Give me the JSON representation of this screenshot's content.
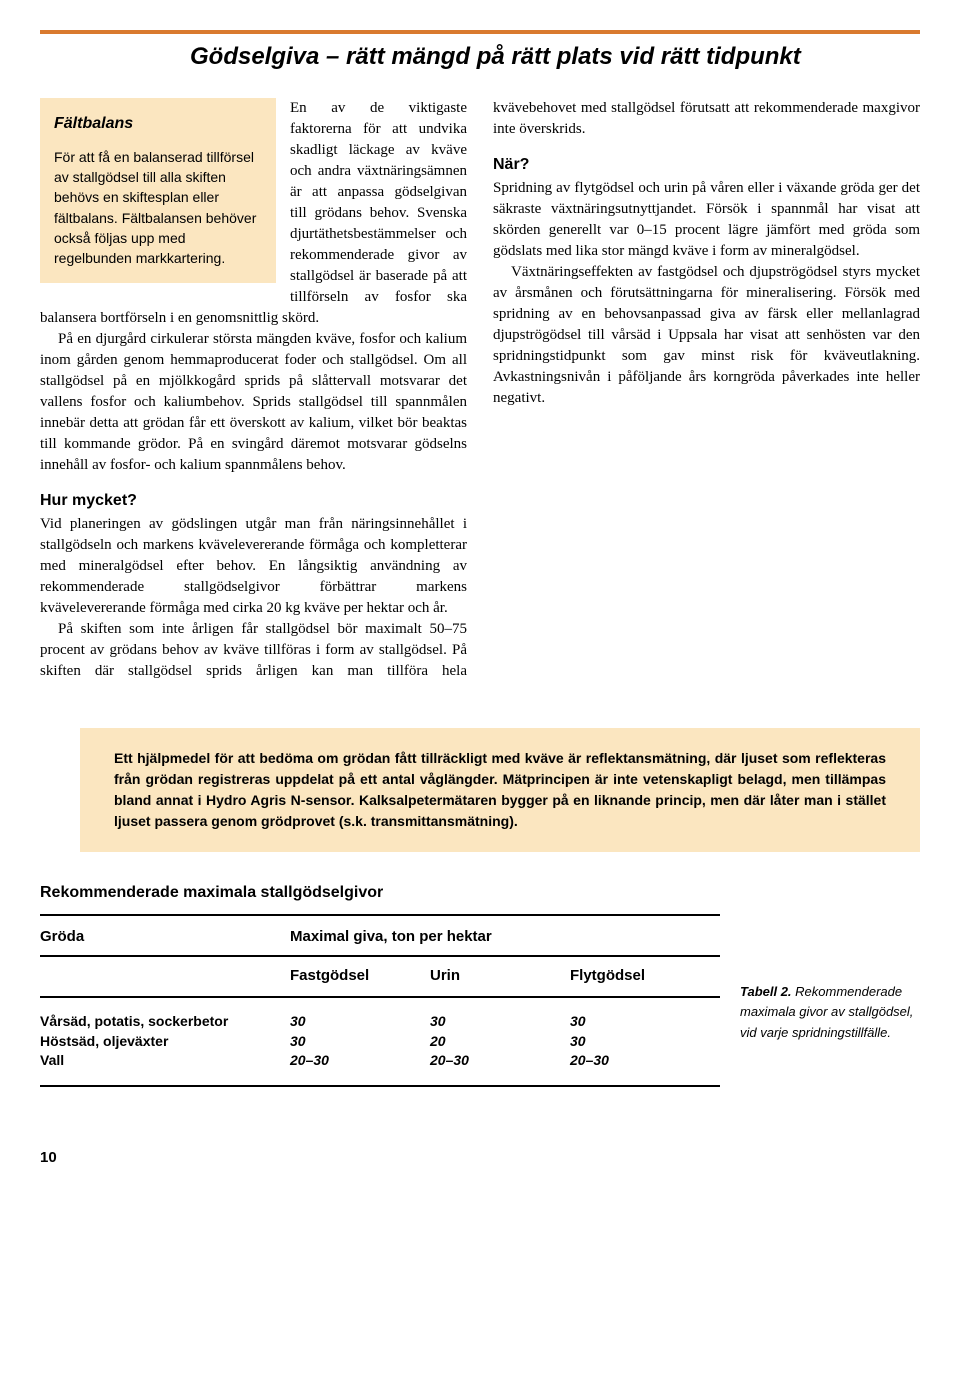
{
  "title": "Gödselgiva – rätt mängd på rätt plats vid rätt tidpunkt",
  "sidebar": {
    "heading": "Fältbalans",
    "text": "För att få en balanserad tillförsel av stallgödsel till alla skiften behövs en skiftesplan eller fältbalans. Fältbalansen behöver också följas upp med regelbunden markkartering."
  },
  "body": {
    "p1": "En av de viktigaste faktorerna för att undvika skadligt läckage av kväve och andra växtnäringsämnen är att anpassa gödselgivan till grödans behov. Svenska djurtäthetsbestämmelser och rekommenderade givor av stallgödsel är baserade på att tillförseln av fosfor ska balansera bortförseln i en genomsnittlig skörd.",
    "p2": "På en djurgård cirkulerar största mängden kväve, fosfor och kalium inom gården genom hemmaproducerat foder och stallgödsel. Om all stallgödsel på en mjölkkogård sprids på slåttervall motsvarar det vallens fosfor och kaliumbehov. Sprids stallgödsel till spannmålen innebär detta att grödan får ett överskott av kalium, vilket bör beaktas till kommande grödor. På en svingård däremot motsvarar gödselns innehåll av fosfor- och kalium spannmålens behov.",
    "h1": "Hur mycket?",
    "p3": "Vid planeringen av gödslingen utgår man från näringsinnehållet i stallgödseln och markens kvävelevererande förmåga och kompletterar med mineralgödsel efter behov. En långsiktig användning av rekommenderade stallgödselgivor förbättrar markens kvävelevererande förmåga med cirka 20 kg kväve per hektar och år.",
    "p4": "På skiften som inte årligen får stallgödsel bör maximalt 50–75 procent av grödans behov av kväve tillföras i form av stallgödsel. På skiften där stallgödsel sprids årligen kan man tillföra hela kvävebehovet med stallgödsel förutsatt att rekommenderade maxgivor inte överskrids.",
    "h2": "När?",
    "p5": "Spridning av flytgödsel och urin på våren eller i växande gröda ger det säkraste växtnäringsutnyttjandet. Försök i spannmål har visat att skörden generellt var 0–15 procent lägre jämfört med gröda som gödslats med lika stor mängd kväve i form av mineralgödsel.",
    "p6": "Växtnäringseffekten av fastgödsel och djupströgödsel styrs mycket av årsmånen och förutsättningarna för mineralisering. Försök med spridning av en behovsanpassad giva av färsk eller mellanlagrad djupströgödsel till vårsäd i Uppsala har visat att senhösten var den spridningstidpunkt som gav minst risk för kväveutlakning. Avkastningsnivån i påföljande års korngröda påverkades inte heller negativt."
  },
  "infoBox": "Ett hjälpmedel för att bedöma om grödan fått tillräckligt med kväve är reflektansmätning, där ljuset som reflekteras från grödan registreras uppdelat på ett antal våglängder. Mätprincipen är inte vetenskapligt belagd, men tillämpas bland annat i Hydro Agris N-sensor. Kalksalpetermätaren bygger på en liknande princip, men där låter man i stället ljuset passera genom grödprovet (s.k. transmittansmätning).",
  "table": {
    "title": "Rekommenderade maximala stallgödselgivor",
    "colGroda": "Gröda",
    "colGroup": "Maximal giva, ton per hektar",
    "sub1": "Fastgödsel",
    "sub2": "Urin",
    "sub3": "Flytgödsel",
    "rows": [
      {
        "groda": "Vårsäd, potatis, sockerbetor",
        "c1": "30",
        "c2": "30",
        "c3": "30"
      },
      {
        "groda": "Höstsäd, oljeväxter",
        "c1": "30",
        "c2": "20",
        "c3": "30"
      },
      {
        "groda": "Vall",
        "c1": "20–30",
        "c2": "20–30",
        "c3": "20–30"
      }
    ],
    "captionLead": "Tabell 2.",
    "captionRest": " Rekommenderade maximala givor av stallgödsel, vid varje spridningstillfälle."
  },
  "pageNumber": "10"
}
